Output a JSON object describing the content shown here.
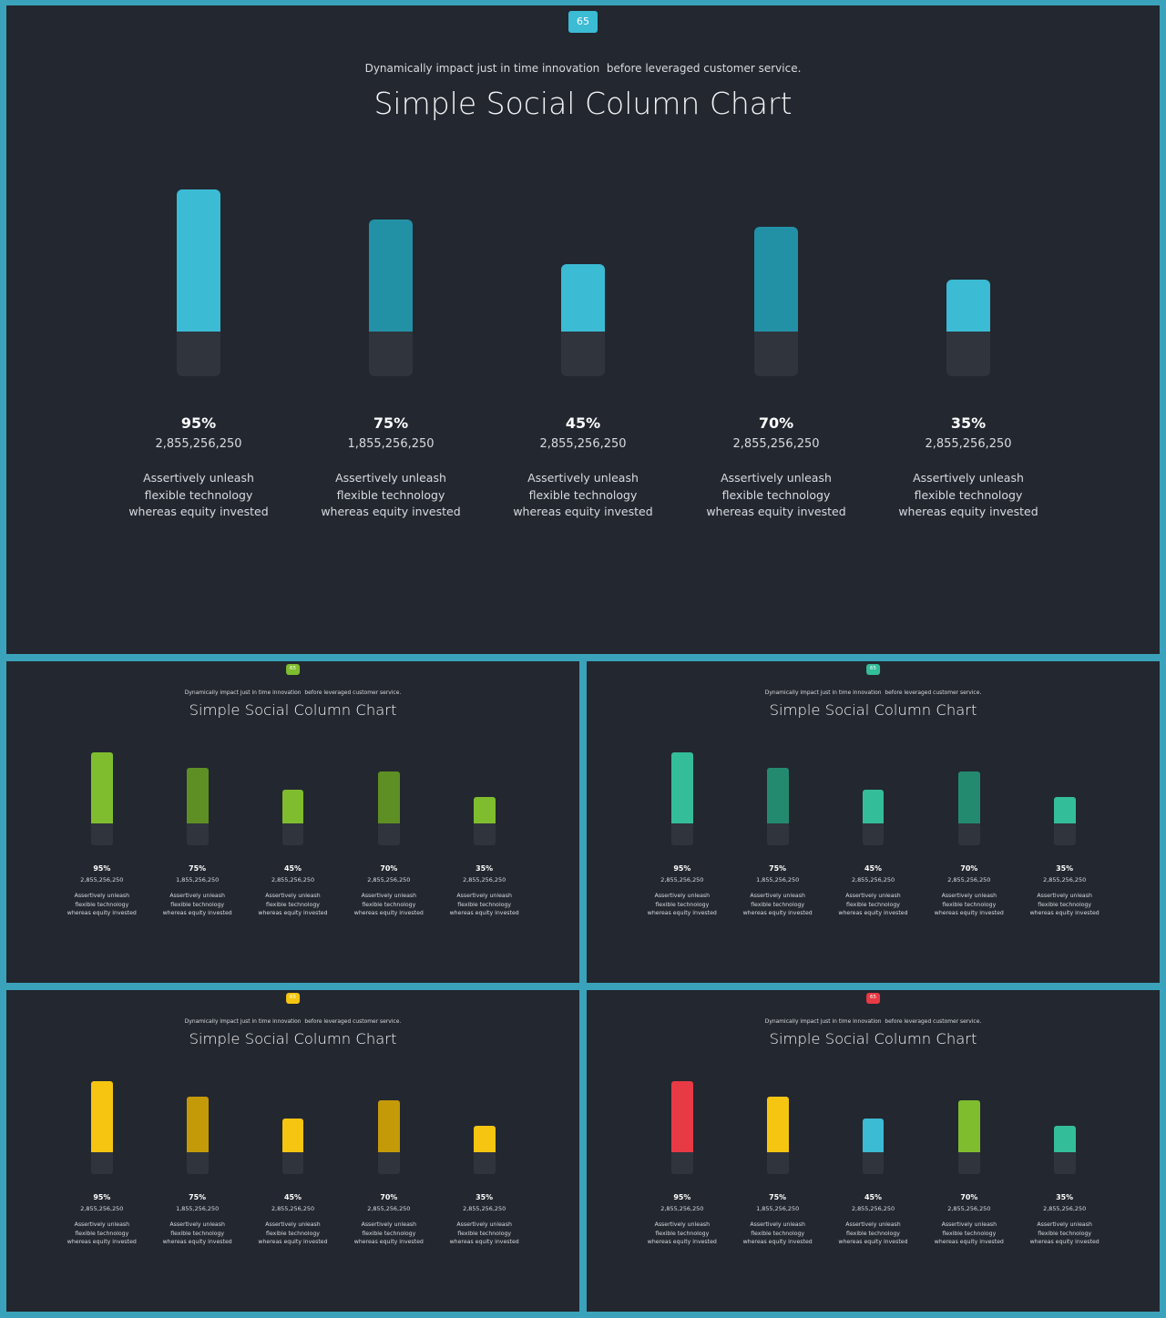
{
  "slides": [
    {
      "badge": "65",
      "badge_color": "#3bbbd4",
      "subtitle": "Dynamically impact just in time innovation  before leveraged customer service.",
      "title": "Simple Social Column Chart",
      "colors": [
        "#3bbbd4",
        "#2291a6",
        "#3bbbd4",
        "#2291a6",
        "#3bbbd4"
      ]
    },
    {
      "badge": "65",
      "badge_color": "#7fbd2e",
      "subtitle": "Dynamically impact just in time innovation  before leveraged customer service.",
      "title": "Simple Social Column Chart",
      "colors": [
        "#7fbd2e",
        "#5e8f24",
        "#7fbd2e",
        "#5e8f24",
        "#7fbd2e"
      ]
    },
    {
      "badge": "65",
      "badge_color": "#33bd99",
      "subtitle": "Dynamically impact just in time innovation  before leveraged customer service.",
      "title": "Simple Social Column Chart",
      "colors": [
        "#33bd99",
        "#238a70",
        "#33bd99",
        "#238a70",
        "#33bd99"
      ]
    },
    {
      "badge": "65",
      "badge_color": "#f5c511",
      "subtitle": "Dynamically impact just in time innovation  before leveraged customer service.",
      "title": "Simple Social Column Chart",
      "colors": [
        "#f5c511",
        "#c59a08",
        "#f5c511",
        "#c59a08",
        "#f5c511"
      ]
    },
    {
      "badge": "65",
      "badge_color": "#e83a44",
      "subtitle": "Dynamically impact just in time innovation  before leveraged customer service.",
      "title": "Simple Social Column Chart",
      "colors": [
        "#e83a44",
        "#f5c511",
        "#3bbbd4",
        "#7fbd2e",
        "#33bd99"
      ]
    }
  ],
  "chart_data": {
    "type": "bar",
    "title": "Simple Social Column Chart",
    "subtitle": "Dynamically impact just in time innovation  before leveraged customer service.",
    "categories": [
      "95%",
      "75%",
      "45%",
      "70%",
      "35%"
    ],
    "values": [
      95,
      75,
      45,
      70,
      35
    ],
    "ylim": [
      0,
      100
    ],
    "amounts": [
      "2,855,256,250",
      "1,855,256,250",
      "2,855,256,250",
      "2,855,256,250",
      "2,855,256,250"
    ],
    "descriptions": [
      "Assertively unleash flexible technology whereas equity invested",
      "Assertively unleash flexible technology whereas equity invested",
      "Assertively unleash flexible technology whereas equity invested",
      "Assertively unleash flexible technology whereas equity invested",
      "Assertively unleash flexible technology whereas equity invested"
    ],
    "grid": false,
    "legend": "none"
  }
}
